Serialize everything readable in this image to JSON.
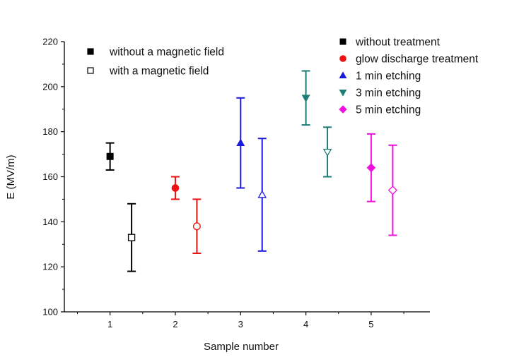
{
  "chart_data": {
    "type": "scatter",
    "title": "",
    "xlabel": "Sample number",
    "ylabel": "E (MV/m)",
    "xlim": [
      0.3,
      5.9
    ],
    "ylim": [
      100,
      220
    ],
    "xticks": [
      1,
      2,
      3,
      4,
      5
    ],
    "yticks": [
      100,
      120,
      140,
      160,
      180,
      200,
      220
    ],
    "grid": false,
    "marker_legend": {
      "placement": "top-left",
      "entries": [
        {
          "label": "without a magnetic field",
          "fill": "filled"
        },
        {
          "label": "with a magnetic field",
          "fill": "open"
        }
      ]
    },
    "treatment_legend": {
      "placement": "top-right",
      "entries": [
        {
          "label": "without treatment",
          "marker": "square",
          "color": "#000000"
        },
        {
          "label": "glow discharge treatment",
          "marker": "circle",
          "color": "#ee1111"
        },
        {
          "label": "1 min etching",
          "marker": "triangle-up",
          "color": "#1a1add"
        },
        {
          "label": "3 min etching",
          "marker": "triangle-down",
          "color": "#1c7d74"
        },
        {
          "label": "5 min etching",
          "marker": "diamond",
          "color": "#ee11dd"
        }
      ]
    },
    "series": [
      {
        "name": "without treatment",
        "marker": "square",
        "color": "#000000",
        "points": [
          {
            "x": 1,
            "y": 169,
            "lower": 163,
            "upper": 175,
            "fill": "filled"
          },
          {
            "x": 1.33,
            "y": 133,
            "lower": 118,
            "upper": 148,
            "fill": "open"
          }
        ]
      },
      {
        "name": "glow discharge treatment",
        "marker": "circle",
        "color": "#ee1111",
        "points": [
          {
            "x": 2,
            "y": 155,
            "lower": 150,
            "upper": 160,
            "fill": "filled"
          },
          {
            "x": 2.33,
            "y": 138,
            "lower": 126,
            "upper": 150,
            "fill": "open"
          }
        ]
      },
      {
        "name": "1 min etching",
        "marker": "triangle-up",
        "color": "#1a1add",
        "points": [
          {
            "x": 3,
            "y": 175,
            "lower": 155,
            "upper": 195,
            "fill": "filled"
          },
          {
            "x": 3.33,
            "y": 152,
            "lower": 127,
            "upper": 177,
            "fill": "open"
          }
        ]
      },
      {
        "name": "3 min etching",
        "marker": "triangle-down",
        "color": "#1c7d74",
        "points": [
          {
            "x": 4,
            "y": 195,
            "lower": 183,
            "upper": 207,
            "fill": "filled"
          },
          {
            "x": 4.33,
            "y": 171,
            "lower": 160,
            "upper": 182,
            "fill": "open"
          }
        ]
      },
      {
        "name": "5 min etching",
        "marker": "diamond",
        "color": "#ee11dd",
        "points": [
          {
            "x": 5,
            "y": 164,
            "lower": 149,
            "upper": 179,
            "fill": "filled"
          },
          {
            "x": 5.33,
            "y": 154,
            "lower": 134,
            "upper": 174,
            "fill": "open"
          }
        ]
      }
    ]
  }
}
